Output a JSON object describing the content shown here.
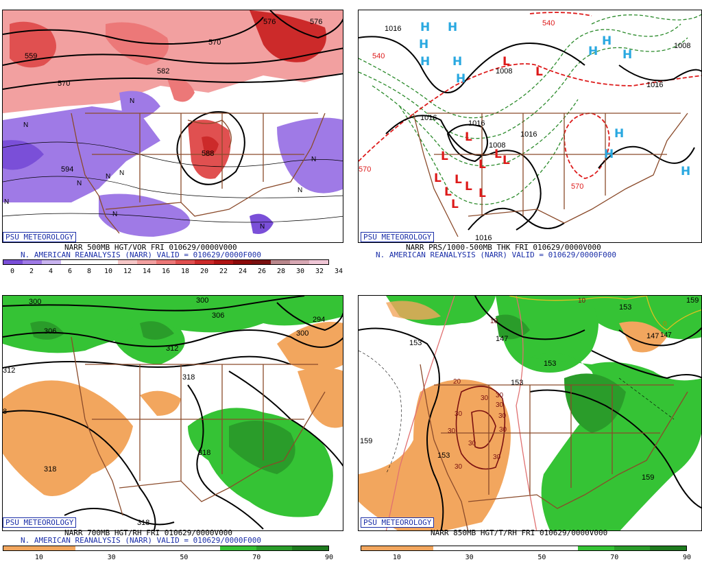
{
  "panels": [
    {
      "id": "p500",
      "badge": "PSU METEOROLOGY",
      "line1": "NARR 500MB HGT/VOR FRI 010629/0000V000",
      "line2": "N. AMERICAN REANALYSIS (NARR) VALID = 010629/0000F000",
      "colorbar": {
        "colors": [
          "#7a4fd8",
          "#9f7ae6",
          "#c9b4f0",
          "#ffffff",
          "#ffffff",
          "#ffffff",
          "#f6c7c7",
          "#f2a0a0",
          "#ec7878",
          "#e05050",
          "#cc2a2a",
          "#b01414",
          "#8c0a0a",
          "#7a1010",
          "#b9878c",
          "#d8a8b4",
          "#f0c6d6"
        ],
        "ticks": [
          "0",
          "2",
          "4",
          "6",
          "8",
          "10",
          "12",
          "14",
          "16",
          "18",
          "20",
          "22",
          "24",
          "26",
          "28",
          "30",
          "32",
          "34"
        ]
      },
      "contour_labels": [
        "559",
        "570",
        "582",
        "570",
        "588",
        "594",
        "576",
        "576"
      ],
      "n_marks": [
        "N",
        "N",
        "N",
        "N",
        "N",
        "N",
        "N",
        "N",
        "N",
        "N"
      ]
    },
    {
      "id": "pthk",
      "badge": "PSU METEOROLOGY",
      "line1": "NARR PRS/1000-500MB THK FRI 010629/0000V000",
      "line2": "N. AMERICAN REANALYSIS (NARR) VALID = 010629/0000F000",
      "contour_labels": [
        "1016",
        "540",
        "1008",
        "1016",
        "1016",
        "1016",
        "1016",
        "570",
        "570",
        "1008",
        "540",
        "1008",
        "1016"
      ],
      "highs": [
        "H",
        "H",
        "H",
        "H",
        "H",
        "H",
        "H",
        "H",
        "H",
        "H",
        "H",
        "H"
      ],
      "lows": [
        "L",
        "L",
        "L",
        "L",
        "L",
        "L",
        "L",
        "L",
        "L",
        "L",
        "L",
        "L",
        "L"
      ]
    },
    {
      "id": "p700",
      "badge": "PSU METEOROLOGY",
      "line1": "NARR 700MB HGT/RH FRI 010629/0000V000",
      "line2": "N. AMERICAN REANALYSIS (NARR) VALID = 010629/0000F000",
      "colorbar": {
        "colors": [
          "#f2a65e",
          "#f2a65e",
          "#ffffff",
          "#ffffff",
          "#ffffff",
          "#ffffff",
          "#35c335",
          "#2a9c2a",
          "#1e7a1e"
        ],
        "ticks": [
          "10",
          "30",
          "50",
          "70",
          "90"
        ]
      },
      "contour_labels": [
        "300",
        "300",
        "306",
        "306",
        "312",
        "312",
        "318",
        "318",
        "318",
        "318",
        "294",
        "300",
        "8"
      ]
    },
    {
      "id": "p850",
      "badge": "PSU METEOROLOGY",
      "line1": "NARR 850MB HGT/T/RH FRI 010629/0000V000",
      "colorbar": {
        "colors": [
          "#f2a65e",
          "#f2a65e",
          "#ffffff",
          "#ffffff",
          "#ffffff",
          "#ffffff",
          "#35c335",
          "#2a9c2a",
          "#1e7a1e"
        ],
        "ticks": [
          "10",
          "30",
          "50",
          "70",
          "90"
        ]
      },
      "contour_labels": [
        "153",
        "159",
        "153",
        "153",
        "147",
        "147",
        "153",
        "159",
        "153",
        "159"
      ],
      "temp_labels": [
        "10",
        "20",
        "30",
        "30",
        "30",
        "30",
        "30",
        "30",
        "30",
        "30",
        "30",
        "30",
        "10",
        "0",
        "147"
      ]
    }
  ]
}
